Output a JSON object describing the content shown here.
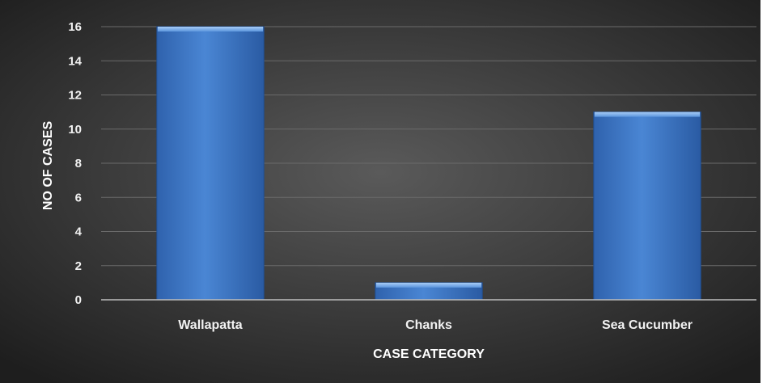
{
  "chart_data": {
    "type": "bar",
    "categories": [
      "Wallapatta",
      "Chanks",
      "Sea Cucumber"
    ],
    "values": [
      16,
      1,
      11
    ],
    "title": "",
    "xlabel": "CASE CATEGORY",
    "ylabel": "NO OF CASES",
    "ylim": [
      0,
      16
    ],
    "yticks": [
      0,
      2,
      4,
      6,
      8,
      10,
      12,
      14,
      16
    ],
    "grid": true,
    "legend": "none",
    "colors": {
      "bar": "#4a86d4",
      "bar_top": "#8fb8ee",
      "background_center": "#5a5a5a",
      "background_edge": "#1e1e1e",
      "gridline": "#6a6a6a",
      "axis": "#bdbdbd",
      "text": "#f2f2f2"
    }
  }
}
